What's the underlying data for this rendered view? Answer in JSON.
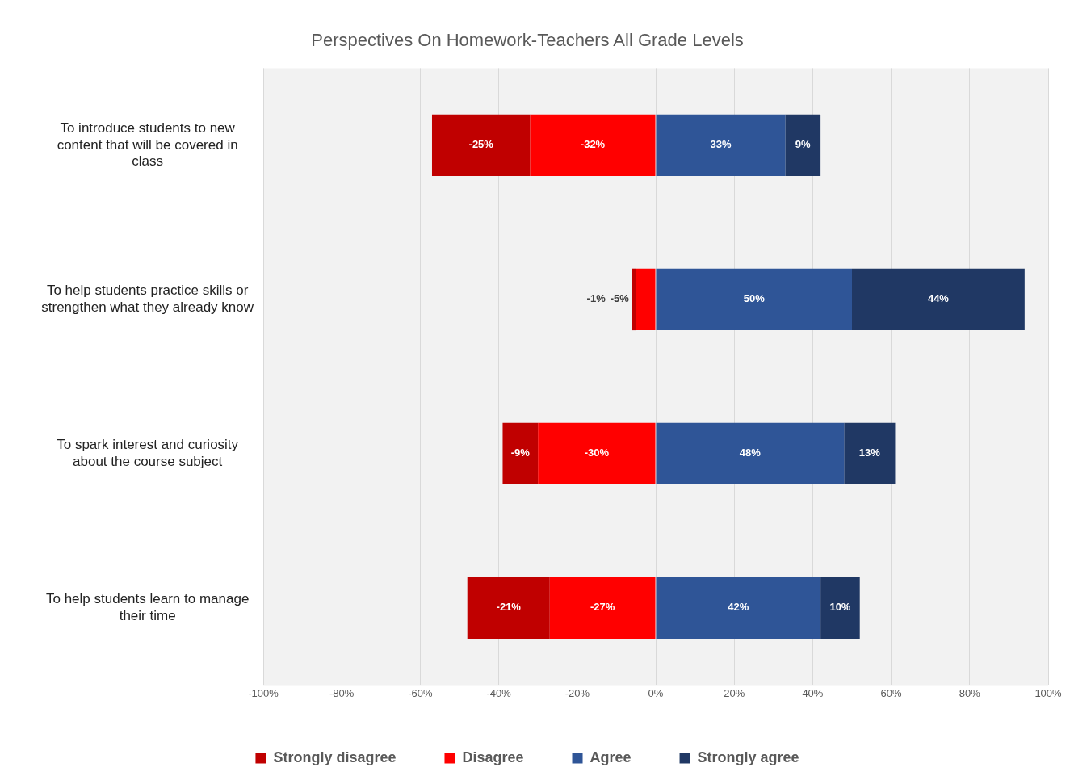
{
  "chart_data": {
    "type": "bar",
    "orientation": "horizontal",
    "stacked": true,
    "title": "Perspectives On Homework-Teachers All Grade Levels",
    "categories": [
      "To introduce students to new content that will be covered in class",
      "To help students practice skills or strengthen what they already know",
      "To spark interest and curiosity about the course subject",
      "To help students learn to manage their time"
    ],
    "series": [
      {
        "name": "Disagree",
        "color": "#ff0000",
        "values": [
          -32,
          -5,
          -30,
          -27
        ],
        "value_labels": [
          "-32%",
          "-5%",
          "-30%",
          "-27%"
        ]
      },
      {
        "name": "Strongly disagree",
        "color": "#c00000",
        "values": [
          -25,
          -1,
          -9,
          -21
        ],
        "value_labels": [
          "-25%",
          "-1%",
          "-9%",
          "-21%"
        ]
      },
      {
        "name": "Agree",
        "color": "#2f5597",
        "values": [
          33,
          50,
          48,
          42
        ],
        "value_labels": [
          "33%",
          "50%",
          "48%",
          "42%"
        ]
      },
      {
        "name": "Strongly agree",
        "color": "#203864",
        "values": [
          9,
          44,
          13,
          10
        ],
        "value_labels": [
          "9%",
          "44%",
          "13%",
          "10%"
        ]
      }
    ],
    "xlim": [
      -100,
      100
    ],
    "xticks": [
      {
        "value": -100,
        "label": "-100%"
      },
      {
        "value": -80,
        "label": "-80%"
      },
      {
        "value": -60,
        "label": "-60%"
      },
      {
        "value": -40,
        "label": "-40%"
      },
      {
        "value": -20,
        "label": "-20%"
      },
      {
        "value": 0,
        "label": "0%"
      },
      {
        "value": 20,
        "label": "20%"
      },
      {
        "value": 40,
        "label": "40%"
      },
      {
        "value": 60,
        "label": "60%"
      },
      {
        "value": 80,
        "label": "80%"
      },
      {
        "value": 100,
        "label": "100%"
      }
    ],
    "grid": "x",
    "legend": "bottom"
  }
}
